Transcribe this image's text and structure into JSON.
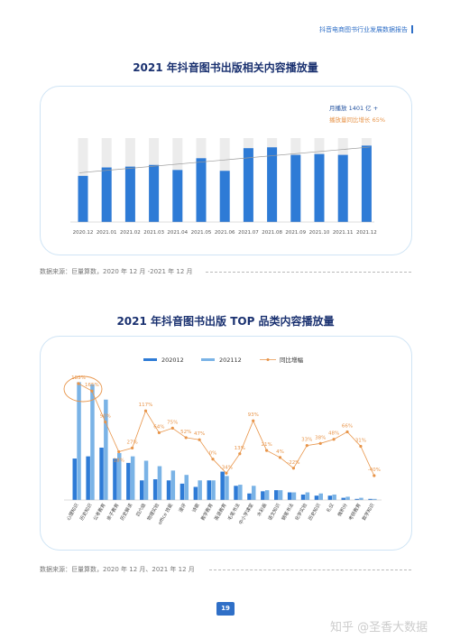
{
  "header": {
    "title": "抖音电商图书行业发展数据报告"
  },
  "chart1": {
    "title": "2021 年抖音图书出版相关内容播放量"
  },
  "chart2": {
    "title": "2021 年抖音图书出版 TOP 品类内容播放量"
  },
  "source1": "数据来源：巨量算数，2020 年 12 月 -2021 年 12 月",
  "source2": "数据来源：巨量算数，2020 年 12 月、2021 年 12 月",
  "page_number": "19",
  "watermark": "知乎 @圣香大数据",
  "colors": {
    "primary": "#2e7bd6",
    "light_blue": "#7ab3e6",
    "orange": "#e8954a",
    "background_bar": "#ececec"
  },
  "chart_data": [
    {
      "type": "bar",
      "title": "2021 年抖音图书出版相关内容播放量",
      "categories": [
        "2020.12",
        "2021.01",
        "2021.02",
        "2021.03",
        "2021.04",
        "2021.05",
        "2021.06",
        "2021.07",
        "2021.08",
        "2021.09",
        "2021.10",
        "2021.11",
        "2021.12"
      ],
      "values": [
        55,
        65,
        66,
        68,
        62,
        76,
        61,
        88,
        89,
        80,
        81,
        80,
        91
      ],
      "ylim": [
        0,
        100
      ],
      "trendline": true,
      "annotations": [
        "月播放 1401 亿 +",
        "播放量同比增长 65%"
      ]
    },
    {
      "type": "bar",
      "title": "2021 年抖音图书出版 TOP 品类内容播放量",
      "categories": [
        "心理知识",
        "历史知识",
        "公考教育",
        "亲子教育",
        "历史解读",
        "四六级",
        "物理实验",
        "office 技能",
        "漫评",
        "诗歌",
        "教学教育",
        "英语教育",
        "毛笔书法",
        "中小学课堂",
        "水彩画",
        "语文知识",
        "钢笔书法",
        "化学实验",
        "历史知识",
        "礼仪",
        "微积分",
        "考研教育",
        "数学知识"
      ],
      "series": [
        {
          "name": "202012",
          "values": [
            38,
            40,
            48,
            38,
            34,
            18,
            19,
            18,
            15,
            12,
            18,
            26,
            13,
            6,
            8,
            9,
            7,
            5,
            4,
            4,
            2,
            1,
            1
          ]
        },
        {
          "name": "202112",
          "values": [
            108,
            106,
            92,
            43,
            40,
            36,
            31,
            27,
            23,
            18,
            18,
            22,
            14,
            13,
            9,
            9,
            7,
            7,
            6,
            5,
            3,
            2,
            1
          ]
        },
        {
          "name": "同比增幅",
          "values": [
            183,
            165,
            90,
            18,
            27,
            117,
            64,
            75,
            52,
            47,
            0,
            -34,
            13,
            93,
            21,
            4,
            -22,
            33,
            38,
            48,
            66,
            31,
            -40
          ]
        }
      ],
      "data_labels": [
        "183%",
        "165%",
        "90%",
        "18%",
        "27%",
        "117%",
        "64%",
        "75%",
        "52%",
        "47%",
        "0%",
        "-34%",
        "13%",
        "93%",
        "21%",
        "4%",
        "-22%",
        "33%",
        "38%",
        "48%",
        "66%",
        "31%",
        "-40%"
      ],
      "legend_position": "top"
    }
  ]
}
